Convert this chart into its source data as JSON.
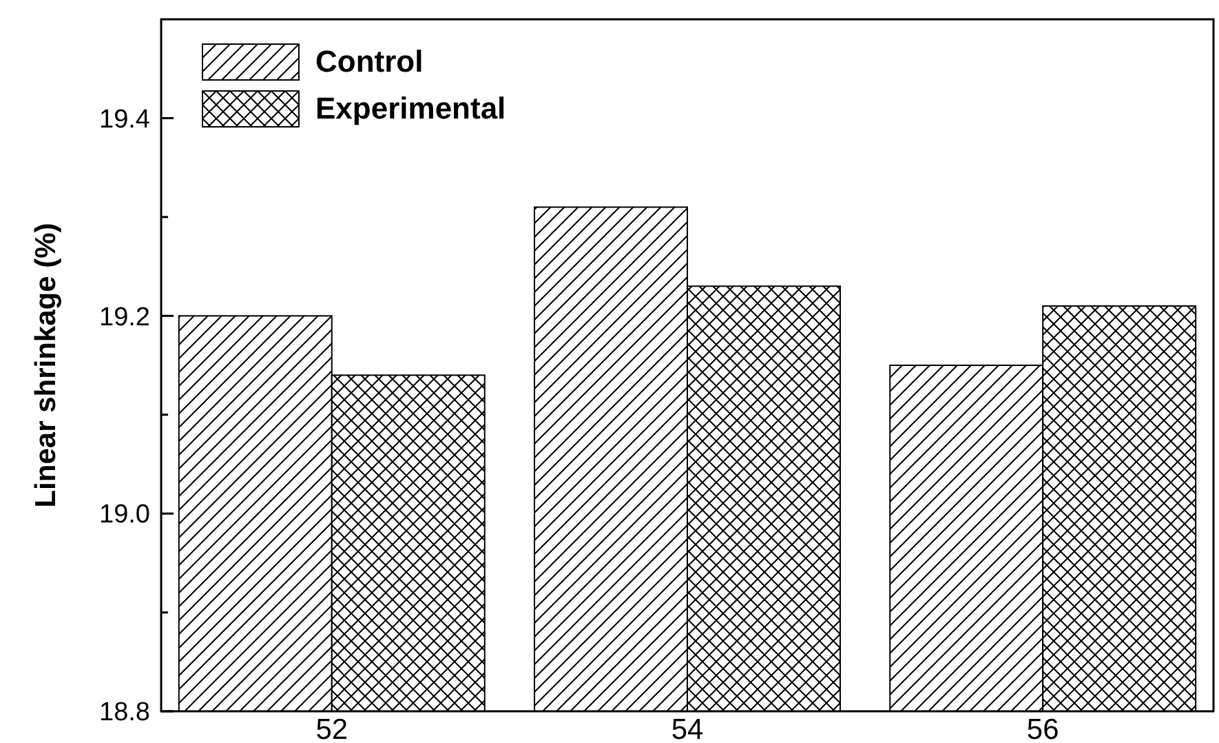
{
  "chart_data": {
    "type": "bar",
    "ylabel": "Linear shrinkage (%)",
    "categories": [
      "52",
      "54",
      "56"
    ],
    "series": [
      {
        "name": "Control",
        "color": "#000000",
        "values": [
          19.2,
          19.31,
          19.15
        ]
      },
      {
        "name": "Experimental",
        "color": "#000000",
        "values": [
          19.14,
          19.23,
          19.21
        ]
      }
    ],
    "ylim": [
      18.8,
      19.5
    ],
    "yticks": [
      18.8,
      {
        "value": 18.9,
        "label": null
      },
      "19.0",
      {
        "value": 19.1,
        "label": null
      },
      19.2,
      {
        "value": 19.3,
        "label": null
      },
      19.4
    ],
    "legend": "top left",
    "grid": false
  }
}
